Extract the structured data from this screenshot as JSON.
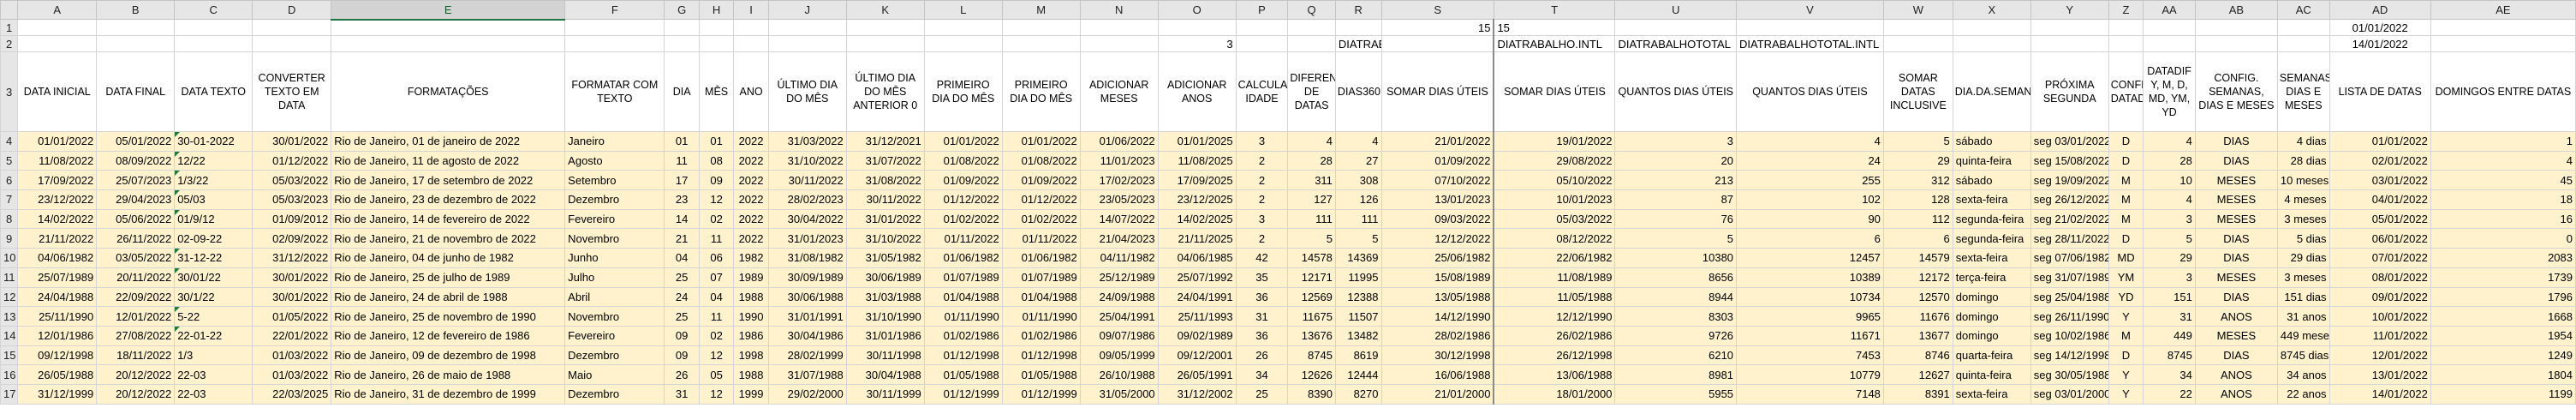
{
  "columns": [
    "A",
    "B",
    "C",
    "D",
    "E",
    "F",
    "G",
    "H",
    "I",
    "J",
    "K",
    "L",
    "M",
    "N",
    "O",
    "P",
    "Q",
    "R",
    "S",
    "T",
    "U",
    "V",
    "W",
    "X",
    "Y",
    "Z",
    "AA",
    "AB",
    "AC",
    "AD",
    "AE"
  ],
  "rows": [
    [
      "",
      "",
      "",
      "",
      "",
      "",
      "",
      "",
      "",
      "",
      "",
      "",
      "",
      "",
      "",
      "",
      "",
      "",
      "15",
      "15",
      "",
      "",
      "",
      "",
      "",
      "",
      "",
      "",
      "",
      "01/01/2022",
      ""
    ],
    [
      "",
      "",
      "",
      "",
      "",
      "",
      "",
      "",
      "",
      "",
      "",
      "",
      "",
      "",
      "3",
      "",
      "",
      "DIATRABALHO",
      "",
      "DIATRABALHO.INTL",
      "DIATRABALHOTOTAL",
      "DIATRABALHOTOTAL.INTL",
      "",
      "",
      "",
      "",
      "",
      "",
      "",
      "14/01/2022",
      ""
    ],
    [
      "DATA INICIAL",
      "DATA FINAL",
      "DATA TEXTO",
      "CONVERTER TEXTO EM DATA",
      "FORMATAÇÕES",
      "FORMATAR COM TEXTO",
      "DIA",
      "MÊS",
      "ANO",
      "ÚLTIMO DIA DO MÊS",
      "ÚLTIMO DIA DO MÊS ANTERIOR 0",
      "PRIMEIRO DIA DO MÊS",
      "PRIMEIRO DIA DO MÊS",
      "ADICIONAR MESES",
      "ADICIONAR ANOS",
      "CALCULAR IDADE",
      "DIFERENÇA DE DATAS",
      "DIAS360",
      "SOMAR DIAS ÚTEIS",
      "SOMAR DIAS ÚTEIS",
      "QUANTOS DIAS ÚTEIS",
      "QUANTOS DIAS ÚTEIS",
      "SOMAR DATAS INCLUSIVE",
      "DIA.DA.SEMANA",
      "PRÓXIMA SEGUNDA",
      "CONFIG. DATADIF",
      "DATADIF Y, M, D, MD, YM, YD",
      "CONFIG. SEMANAS, DIAS E MESES",
      "SEMANAS, DIAS E MESES",
      "LISTA DE DATAS",
      "DOMINGOS ENTRE DATAS"
    ],
    [
      "01/01/2022",
      "05/01/2022",
      "30-01-2022",
      "30/01/2022",
      "Rio de Janeiro,  01 de janeiro de 2022",
      "Janeiro",
      "01",
      "01",
      "2022",
      "31/03/2022",
      "31/12/2021",
      "01/01/2022",
      "01/01/2022",
      "01/06/2022",
      "01/01/2025",
      "3",
      "4",
      "4",
      "21/01/2022",
      "19/01/2022",
      "3",
      "4",
      "5",
      "sábado",
      "seg 03/01/2022",
      "D",
      "4",
      "DIAS",
      "4 dias",
      "01/01/2022",
      "1"
    ],
    [
      "11/08/2022",
      "08/09/2022",
      "12/22",
      "01/12/2022",
      "Rio de Janeiro,  11 de agosto de 2022",
      "Agosto",
      "11",
      "08",
      "2022",
      "31/10/2022",
      "31/07/2022",
      "01/08/2022",
      "01/08/2022",
      "11/01/2023",
      "11/08/2025",
      "2",
      "28",
      "27",
      "01/09/2022",
      "29/08/2022",
      "20",
      "24",
      "29",
      "quinta-feira",
      "seg 15/08/2022",
      "D",
      "28",
      "DIAS",
      "28 dias",
      "02/01/2022",
      "4"
    ],
    [
      "17/09/2022",
      "25/07/2023",
      "1/3/22",
      "05/03/2022",
      "Rio de Janeiro,  17 de setembro de 2022",
      "Setembro",
      "17",
      "09",
      "2022",
      "30/11/2022",
      "31/08/2022",
      "01/09/2022",
      "01/09/2022",
      "17/02/2023",
      "17/09/2025",
      "2",
      "311",
      "308",
      "07/10/2022",
      "05/10/2022",
      "213",
      "255",
      "312",
      "sábado",
      "seg 19/09/2022",
      "M",
      "10",
      "MESES",
      "10 meses",
      "03/01/2022",
      "45"
    ],
    [
      "23/12/2022",
      "29/04/2023",
      "05/03",
      "05/03/2023",
      "Rio de Janeiro,  23 de dezembro de 2022",
      "Dezembro",
      "23",
      "12",
      "2022",
      "28/02/2023",
      "30/11/2022",
      "01/12/2022",
      "01/12/2022",
      "23/05/2023",
      "23/12/2025",
      "2",
      "127",
      "126",
      "13/01/2023",
      "10/01/2023",
      "87",
      "102",
      "128",
      "sexta-feira",
      "seg 26/12/2022",
      "M",
      "4",
      "MESES",
      "4 meses",
      "04/01/2022",
      "18"
    ],
    [
      "14/02/2022",
      "05/06/2022",
      "01/9/12",
      "01/09/2012",
      "Rio de Janeiro,  14 de fevereiro de 2022",
      "Fevereiro",
      "14",
      "02",
      "2022",
      "30/04/2022",
      "31/01/2022",
      "01/02/2022",
      "01/02/2022",
      "14/07/2022",
      "14/02/2025",
      "3",
      "111",
      "111",
      "09/03/2022",
      "05/03/2022",
      "76",
      "90",
      "112",
      "segunda-feira",
      "seg 21/02/2022",
      "M",
      "3",
      "MESES",
      "3 meses",
      "05/01/2022",
      "16"
    ],
    [
      "21/11/2022",
      "26/11/2022",
      "02-09-22",
      "02/09/2022",
      "Rio de Janeiro,  21 de novembro de 2022",
      "Novembro",
      "21",
      "11",
      "2022",
      "31/01/2023",
      "31/10/2022",
      "01/11/2022",
      "01/11/2022",
      "21/04/2023",
      "21/11/2025",
      "2",
      "5",
      "5",
      "12/12/2022",
      "08/12/2022",
      "5",
      "6",
      "6",
      "segunda-feira",
      "seg 28/11/2022",
      "D",
      "5",
      "DIAS",
      "5 dias",
      "06/01/2022",
      "0"
    ],
    [
      "04/06/1982",
      "03/05/2022",
      "31-12-22",
      "31/12/2022",
      "Rio de Janeiro,  04 de junho de 1982",
      "Junho",
      "04",
      "06",
      "1982",
      "31/08/1982",
      "31/05/1982",
      "01/06/1982",
      "01/06/1982",
      "04/11/1982",
      "04/06/1985",
      "42",
      "14578",
      "14369",
      "25/06/1982",
      "22/06/1982",
      "10380",
      "12457",
      "14579",
      "sexta-feira",
      "seg 07/06/1982",
      "MD",
      "29",
      "DIAS",
      "29 dias",
      "07/01/2022",
      "2083"
    ],
    [
      "25/07/1989",
      "20/11/2022",
      "30/01/22",
      "30/01/2022",
      "Rio de Janeiro,  25 de julho de 1989",
      "Julho",
      "25",
      "07",
      "1989",
      "30/09/1989",
      "30/06/1989",
      "01/07/1989",
      "01/07/1989",
      "25/12/1989",
      "25/07/1992",
      "35",
      "12171",
      "11995",
      "15/08/1989",
      "11/08/1989",
      "8656",
      "10389",
      "12172",
      "terça-feira",
      "seg 31/07/1989",
      "YM",
      "3",
      "MESES",
      "3 meses",
      "08/01/2022",
      "1739"
    ],
    [
      "24/04/1988",
      "22/09/2022",
      "30/1/22",
      "30/01/2022",
      "Rio de Janeiro,  24 de abril de 1988",
      "Abril",
      "24",
      "04",
      "1988",
      "30/06/1988",
      "31/03/1988",
      "01/04/1988",
      "01/04/1988",
      "24/09/1988",
      "24/04/1991",
      "36",
      "12569",
      "12388",
      "13/05/1988",
      "11/05/1988",
      "8944",
      "10734",
      "12570",
      "domingo",
      "seg 25/04/1988",
      "YD",
      "151",
      "DIAS",
      "151 dias",
      "09/01/2022",
      "1796"
    ],
    [
      "25/11/1990",
      "12/01/2022",
      "5-22",
      "01/05/2022",
      "Rio de Janeiro,  25 de novembro de 1990",
      "Novembro",
      "25",
      "11",
      "1990",
      "31/01/1991",
      "31/10/1990",
      "01/11/1990",
      "01/11/1990",
      "25/04/1991",
      "25/11/1993",
      "31",
      "11675",
      "11507",
      "14/12/1990",
      "12/12/1990",
      "8303",
      "9965",
      "11676",
      "domingo",
      "seg 26/11/1990",
      "Y",
      "31",
      "ANOS",
      "31 anos",
      "10/01/2022",
      "1668"
    ],
    [
      "12/01/1986",
      "27/08/2022",
      "22-01-22",
      "22/01/2022",
      "Rio de Janeiro,  12 de fevereiro de 1986",
      "Fevereiro",
      "09",
      "02",
      "1986",
      "30/04/1986",
      "31/01/1986",
      "01/02/1986",
      "01/02/1986",
      "09/07/1986",
      "09/02/1989",
      "36",
      "13676",
      "13482",
      "28/02/1986",
      "26/02/1986",
      "9726",
      "11671",
      "13677",
      "domingo",
      "seg 10/02/1986",
      "M",
      "449",
      "MESES",
      "449 meses",
      "11/01/2022",
      "1954"
    ],
    [
      "09/12/1998",
      "18/11/2022",
      "1/3",
      "01/03/2022",
      "Rio de Janeiro,  09 de dezembro de 1998",
      "Dezembro",
      "09",
      "12",
      "1998",
      "28/02/1999",
      "30/11/1998",
      "01/12/1998",
      "01/12/1998",
      "09/05/1999",
      "09/12/2001",
      "26",
      "8745",
      "8619",
      "30/12/1998",
      "26/12/1998",
      "6210",
      "7453",
      "8746",
      "quarta-feira",
      "seg 14/12/1998",
      "D",
      "8745",
      "DIAS",
      "8745 dias",
      "12/01/2022",
      "1249"
    ],
    [
      "26/05/1988",
      "20/12/2022",
      "22-03",
      "01/03/2022",
      "Rio de Janeiro,  26 de maio de 1988",
      "Maio",
      "26",
      "05",
      "1988",
      "31/07/1988",
      "30/04/1988",
      "01/05/1988",
      "01/05/1988",
      "26/10/1988",
      "26/05/1991",
      "34",
      "12626",
      "12444",
      "16/06/1988",
      "13/06/1988",
      "8981",
      "10779",
      "12627",
      "quinta-feira",
      "seg 30/05/1988",
      "Y",
      "34",
      "ANOS",
      "34 anos",
      "13/01/2022",
      "1804"
    ],
    [
      "31/12/1999",
      "20/12/2022",
      "22-03",
      "22/03/2025",
      "Rio de Janeiro,  31 de dezembro de 1999",
      "Dezembro",
      "31",
      "12",
      "1999",
      "29/02/2000",
      "30/11/1999",
      "01/12/1999",
      "01/12/1999",
      "31/05/2000",
      "31/12/2002",
      "25",
      "8390",
      "8270",
      "21/01/2000",
      "18/01/2000",
      "5955",
      "7148",
      "8391",
      "sexta-feira",
      "seg 03/01/2000",
      "Y",
      "22",
      "ANOS",
      "22 anos",
      "14/01/2022",
      "1199"
    ]
  ]
}
